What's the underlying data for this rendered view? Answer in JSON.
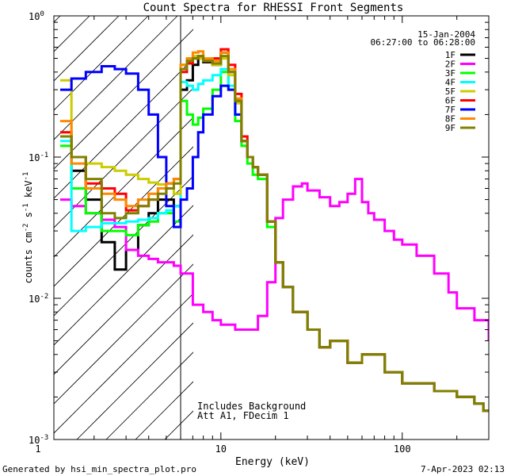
{
  "chart_data": {
    "type": "line",
    "title": "Count Spectra for RHESSI Front Segments",
    "xlabel": "Energy (keV)",
    "ylabel": "counts cm^-2 s^-1 keV^-1",
    "x_scale": "log",
    "y_scale": "log",
    "xlim": [
      1.2,
      300
    ],
    "ylim": [
      0.001,
      1
    ],
    "x_ticks": [
      {
        "v": 1,
        "label": "1"
      },
      {
        "v": 10,
        "label": "10"
      },
      {
        "v": 100,
        "label": "100"
      }
    ],
    "y_ticks": [
      {
        "v": 0.001,
        "base": "10",
        "exp": "-3"
      },
      {
        "v": 0.01,
        "base": "10",
        "exp": "-2"
      },
      {
        "v": 0.1,
        "base": "10",
        "exp": "-1"
      },
      {
        "v": 1,
        "base": "10",
        "exp": "0"
      }
    ],
    "hatched_region_kev": [
      1.2,
      6
    ],
    "date": "15-Jan-2004",
    "time_range": "06:27:00 to 06:28:00",
    "annotations": [
      "Includes Background",
      "Att A1, FDecim 1"
    ],
    "footer_left": "Generated by hsi_min_spectra_plot.pro",
    "footer_right": "7-Apr-2023 02:13",
    "legend_position": "top-right",
    "series": [
      {
        "name": "1F",
        "color": "#000000",
        "x": [
          1.3,
          1.5,
          1.8,
          2.2,
          2.6,
          3.0,
          3.5,
          4.0,
          4.5,
          5.0,
          5.5,
          6.0,
          6.5,
          7.0,
          7.5,
          8.0,
          9.0,
          10,
          11,
          12,
          13,
          14,
          15,
          16,
          18,
          20,
          22,
          25,
          30,
          35,
          40,
          50,
          60,
          80,
          100,
          150,
          200,
          250,
          280
        ],
        "values": [
          0.14,
          0.08,
          0.05,
          0.025,
          0.016,
          0.022,
          0.033,
          0.04,
          0.05,
          0.05,
          0.045,
          0.3,
          0.35,
          0.45,
          0.5,
          0.47,
          0.45,
          0.55,
          0.4,
          0.25,
          0.13,
          0.1,
          0.085,
          0.075,
          0.035,
          0.018,
          0.012,
          0.008,
          0.006,
          0.0045,
          0.005,
          0.0035,
          0.004,
          0.003,
          0.0025,
          0.0022,
          0.002,
          0.0018,
          0.0016
        ]
      },
      {
        "name": "2F",
        "color": "#ff00ff",
        "x": [
          1.3,
          1.5,
          1.8,
          2.2,
          2.6,
          3.0,
          3.5,
          4.0,
          4.5,
          5.0,
          5.5,
          6.0,
          7.0,
          8.0,
          9.0,
          10,
          12,
          14,
          16,
          18,
          20,
          22,
          25,
          28,
          30,
          35,
          40,
          45,
          50,
          55,
          60,
          65,
          70,
          80,
          90,
          100,
          120,
          150,
          180,
          200,
          250,
          300
        ],
        "values": [
          0.05,
          0.045,
          0.04,
          0.036,
          0.032,
          0.022,
          0.02,
          0.019,
          0.018,
          0.018,
          0.017,
          0.015,
          0.009,
          0.008,
          0.007,
          0.0065,
          0.006,
          0.006,
          0.0075,
          0.013,
          0.037,
          0.05,
          0.062,
          0.065,
          0.058,
          0.052,
          0.045,
          0.048,
          0.055,
          0.07,
          0.048,
          0.04,
          0.036,
          0.03,
          0.026,
          0.024,
          0.02,
          0.015,
          0.011,
          0.0085,
          0.007,
          0.005
        ]
      },
      {
        "name": "3F",
        "color": "#00ff00",
        "x": [
          1.3,
          1.5,
          1.8,
          2.2,
          2.6,
          3.0,
          3.5,
          4.0,
          4.5,
          5.0,
          5.5,
          6.0,
          6.5,
          7.0,
          7.5,
          8.0,
          9.0,
          10,
          11,
          12,
          13,
          14,
          15,
          16,
          18,
          20,
          22,
          25,
          30,
          35,
          40,
          50,
          60,
          80,
          100,
          150,
          200,
          250,
          280
        ],
        "values": [
          0.12,
          0.06,
          0.04,
          0.03,
          0.03,
          0.028,
          0.033,
          0.035,
          0.04,
          0.04,
          0.035,
          0.25,
          0.2,
          0.17,
          0.19,
          0.22,
          0.3,
          0.4,
          0.3,
          0.18,
          0.12,
          0.09,
          0.075,
          0.07,
          0.032,
          0.018,
          0.012,
          0.008,
          0.006,
          0.0045,
          0.005,
          0.0035,
          0.004,
          0.003,
          0.0025,
          0.0022,
          0.002,
          0.0018,
          0.0016
        ]
      },
      {
        "name": "4F",
        "color": "#00ffff",
        "x": [
          1.3,
          1.5,
          1.8,
          2.2,
          2.6,
          3.0,
          3.5,
          4.0,
          4.5,
          5.0,
          5.5,
          6.0,
          6.5,
          7.0,
          7.5,
          8.0,
          9.0,
          10,
          11,
          12,
          13,
          14,
          15,
          16,
          18,
          20,
          22,
          25,
          30,
          35,
          40,
          50,
          60,
          80,
          100,
          150,
          200,
          250,
          280
        ],
        "values": [
          0.13,
          0.03,
          0.032,
          0.034,
          0.034,
          0.035,
          0.036,
          0.037,
          0.04,
          0.042,
          0.045,
          0.34,
          0.32,
          0.3,
          0.33,
          0.35,
          0.38,
          0.42,
          0.32,
          0.2,
          0.13,
          0.1,
          0.085,
          0.075,
          0.035,
          0.018,
          0.012,
          0.008,
          0.006,
          0.0045,
          0.005,
          0.0035,
          0.004,
          0.003,
          0.0025,
          0.0022,
          0.002,
          0.0018,
          0.0016
        ]
      },
      {
        "name": "5F",
        "color": "#cccc00",
        "x": [
          1.3,
          1.5,
          1.8,
          2.2,
          2.6,
          3.0,
          3.5,
          4.0,
          4.5,
          5.0,
          5.5,
          6.0,
          6.5,
          7.0,
          7.5,
          8.0,
          9.0,
          10,
          11,
          12,
          13,
          14,
          15,
          16,
          18,
          20,
          22,
          25,
          30,
          35,
          40,
          50,
          60,
          80,
          100,
          150,
          200,
          250,
          280
        ],
        "values": [
          0.35,
          0.1,
          0.09,
          0.085,
          0.08,
          0.075,
          0.07,
          0.066,
          0.064,
          0.06,
          0.055,
          0.45,
          0.5,
          0.52,
          0.5,
          0.48,
          0.45,
          0.5,
          0.38,
          0.24,
          0.13,
          0.1,
          0.085,
          0.075,
          0.035,
          0.018,
          0.012,
          0.008,
          0.006,
          0.0045,
          0.005,
          0.0035,
          0.004,
          0.003,
          0.0025,
          0.0022,
          0.002,
          0.0018,
          0.0016
        ]
      },
      {
        "name": "6F",
        "color": "#ff0000",
        "x": [
          1.3,
          1.5,
          1.8,
          2.2,
          2.6,
          3.0,
          3.5,
          4.0,
          4.5,
          5.0,
          5.5,
          6.0,
          6.5,
          7.0,
          7.5,
          8.0,
          9.0,
          10,
          11,
          12,
          13,
          14,
          15,
          16,
          18,
          20,
          22,
          25,
          30,
          35,
          40,
          50,
          60,
          80,
          100,
          150,
          200,
          250,
          280
        ],
        "values": [
          0.15,
          0.1,
          0.065,
          0.06,
          0.055,
          0.042,
          0.045,
          0.05,
          0.06,
          0.065,
          0.07,
          0.4,
          0.46,
          0.5,
          0.52,
          0.48,
          0.5,
          0.58,
          0.45,
          0.28,
          0.14,
          0.1,
          0.085,
          0.075,
          0.035,
          0.018,
          0.012,
          0.008,
          0.006,
          0.0045,
          0.005,
          0.0035,
          0.004,
          0.003,
          0.0025,
          0.0022,
          0.002,
          0.0018,
          0.0016
        ]
      },
      {
        "name": "7F",
        "color": "#0000ff",
        "x": [
          1.3,
          1.5,
          1.8,
          2.2,
          2.6,
          3.0,
          3.5,
          4.0,
          4.5,
          5.0,
          5.5,
          6.0,
          6.5,
          7.0,
          7.5,
          8.0,
          9.0,
          10,
          11,
          12,
          13,
          14,
          15,
          16,
          18,
          20,
          22,
          25,
          30,
          35,
          40,
          50,
          60,
          80,
          100,
          150,
          200,
          250,
          280
        ],
        "values": [
          0.3,
          0.36,
          0.4,
          0.44,
          0.42,
          0.39,
          0.3,
          0.2,
          0.1,
          0.045,
          0.032,
          0.05,
          0.06,
          0.1,
          0.15,
          0.2,
          0.27,
          0.32,
          0.3,
          0.2,
          0.13,
          0.1,
          0.085,
          0.075,
          0.035,
          0.018,
          0.012,
          0.008,
          0.006,
          0.0045,
          0.005,
          0.0035,
          0.004,
          0.003,
          0.0025,
          0.0022,
          0.002,
          0.0018,
          0.0016
        ]
      },
      {
        "name": "8F",
        "color": "#ff8800",
        "x": [
          1.3,
          1.5,
          1.8,
          2.2,
          2.6,
          3.0,
          3.5,
          4.0,
          4.5,
          5.0,
          5.5,
          6.0,
          6.5,
          7.0,
          7.5,
          8.0,
          9.0,
          10,
          11,
          12,
          13,
          14,
          15,
          16,
          18,
          20,
          22,
          25,
          30,
          35,
          40,
          50,
          60,
          80,
          100,
          150,
          200,
          250,
          280
        ],
        "values": [
          0.18,
          0.09,
          0.06,
          0.055,
          0.05,
          0.045,
          0.05,
          0.055,
          0.06,
          0.065,
          0.07,
          0.45,
          0.5,
          0.55,
          0.56,
          0.5,
          0.48,
          0.55,
          0.42,
          0.26,
          0.13,
          0.1,
          0.085,
          0.075,
          0.035,
          0.018,
          0.012,
          0.008,
          0.006,
          0.0045,
          0.005,
          0.0035,
          0.004,
          0.003,
          0.0025,
          0.0022,
          0.002,
          0.0018,
          0.0016
        ]
      },
      {
        "name": "9F",
        "color": "#808000",
        "x": [
          1.3,
          1.5,
          1.8,
          2.2,
          2.6,
          3.0,
          3.5,
          4.0,
          4.5,
          5.0,
          5.5,
          6.0,
          6.5,
          7.0,
          7.5,
          8.0,
          9.0,
          10,
          11,
          12,
          13,
          14,
          15,
          16,
          18,
          20,
          22,
          25,
          30,
          35,
          40,
          50,
          60,
          80,
          100,
          150,
          200,
          250,
          280
        ],
        "values": [
          0.14,
          0.1,
          0.07,
          0.04,
          0.037,
          0.04,
          0.045,
          0.05,
          0.055,
          0.06,
          0.065,
          0.42,
          0.48,
          0.5,
          0.52,
          0.48,
          0.46,
          0.52,
          0.4,
          0.25,
          0.13,
          0.1,
          0.085,
          0.075,
          0.035,
          0.018,
          0.012,
          0.008,
          0.006,
          0.0045,
          0.005,
          0.0035,
          0.004,
          0.003,
          0.0025,
          0.0022,
          0.002,
          0.0018,
          0.0016
        ]
      }
    ]
  }
}
